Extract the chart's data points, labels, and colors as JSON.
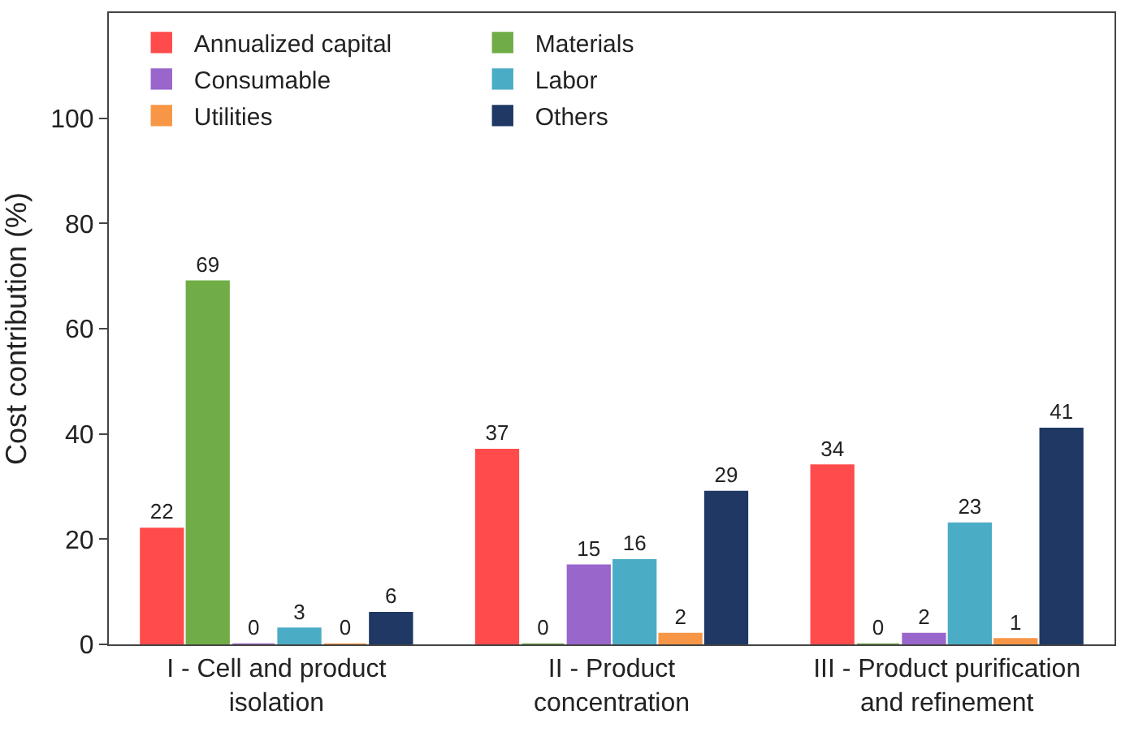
{
  "chart_data": {
    "type": "bar",
    "ylabel": "Cost contribution (%)",
    "categories": [
      "I - Cell and product\nisolation",
      "II - Product\nconcentration",
      "III - Product purification\nand refinement"
    ],
    "series": [
      {
        "name": "Annualized capital",
        "color": "#ff4b4b",
        "values": [
          22,
          37,
          34
        ]
      },
      {
        "name": "Materials",
        "color": "#70ad47",
        "values": [
          69,
          0,
          0
        ]
      },
      {
        "name": "Consumable",
        "color": "#9966cc",
        "values": [
          0,
          15,
          2
        ]
      },
      {
        "name": "Labor",
        "color": "#4bacc6",
        "values": [
          3,
          16,
          23
        ]
      },
      {
        "name": "Utilities",
        "color": "#f79646",
        "values": [
          0,
          2,
          1
        ]
      },
      {
        "name": "Others",
        "color": "#1f3864",
        "values": [
          6,
          29,
          41
        ]
      }
    ],
    "ylim": [
      0,
      120
    ],
    "yticks": [
      0,
      20,
      40,
      60,
      80,
      100
    ],
    "data_labels": true,
    "legend": "top"
  }
}
